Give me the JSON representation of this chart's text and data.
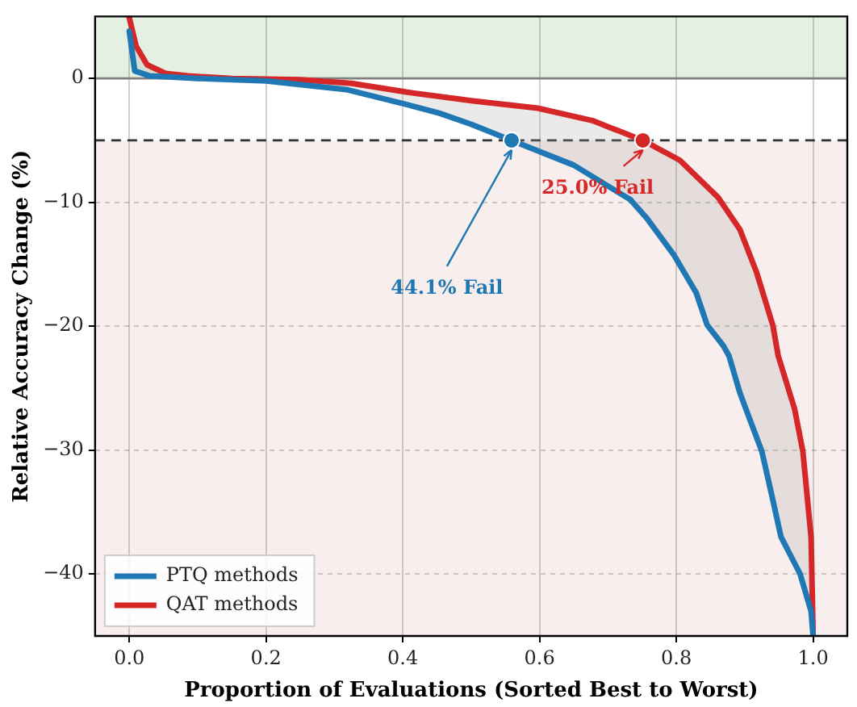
{
  "chart_data": {
    "type": "line",
    "xlabel": "Proportion of Evaluations (Sorted Best to Worst)",
    "ylabel": "Relative Accuracy Change (%)",
    "xlim": [
      -0.05,
      1.05
    ],
    "ylim": [
      -45,
      5
    ],
    "xticks": [
      {
        "value": 0,
        "label": "0.0"
      },
      {
        "value": 0.2,
        "label": "0.2"
      },
      {
        "value": 0.4,
        "label": "0.4"
      },
      {
        "value": 0.6,
        "label": "0.6"
      },
      {
        "value": 0.8,
        "label": "0.8"
      },
      {
        "value": 1,
        "label": "1.0"
      }
    ],
    "yticks": [
      {
        "value": 0,
        "label": "0"
      },
      {
        "value": -10,
        "label": "−10"
      },
      {
        "value": -20,
        "label": "−20"
      },
      {
        "value": -30,
        "label": "−30"
      },
      {
        "value": -40,
        "label": "−40"
      }
    ],
    "grid": true,
    "legend": "bottom left",
    "marker": "none",
    "series": [
      {
        "name": "PTQ methods",
        "color": "#1f77b4",
        "x": [
          0,
          0.008,
          0.03,
          0.1,
          0.2,
          0.317,
          0.405,
          0.453,
          0.5,
          0.559,
          0.65,
          0.733,
          0.757,
          0.797,
          0.829,
          0.845,
          0.869,
          0.877,
          0.893,
          0.925,
          0.941,
          0.953,
          0.981,
          0.997,
          1.0
        ],
        "values": [
          3.8,
          0.6,
          0.2,
          0,
          -0.2,
          -0.9,
          -2.1,
          -2.8,
          -3.7,
          -5,
          -7,
          -9.8,
          -11.3,
          -14.3,
          -17.3,
          -19.9,
          -21.6,
          -22.4,
          -25.4,
          -30.1,
          -34,
          -37,
          -40,
          -43,
          -45
        ]
      },
      {
        "name": "QAT methods",
        "color": "#d62728",
        "x": [
          0,
          0.01,
          0.026,
          0.053,
          0.086,
          0.15,
          0.25,
          0.325,
          0.405,
          0.5,
          0.597,
          0.677,
          0.751,
          0.805,
          0.861,
          0.893,
          0.917,
          0.941,
          0.949,
          0.973,
          0.985,
          0.997,
          1.0
        ],
        "values": [
          4.9,
          2.6,
          1.1,
          0.4,
          0.2,
          0,
          -0.1,
          -0.4,
          -1.1,
          -1.8,
          -2.4,
          -3.4,
          -5,
          -6.6,
          -9.6,
          -12.2,
          -15.6,
          -19.9,
          -22.4,
          -26.7,
          -30.1,
          -37,
          -45
        ]
      },
      {
        "type": "scatter",
        "marker": "circle",
        "color": "#1f77b4",
        "x": [
          0.559
        ],
        "values": [
          -5
        ]
      },
      {
        "type": "scatter",
        "marker": "circle",
        "color": "#d62728",
        "x": [
          0.751
        ],
        "values": [
          -5
        ]
      }
    ],
    "bands": [
      {
        "axis": "y",
        "from": 0,
        "to": 5,
        "color": "#e4f0e2"
      },
      {
        "axis": "y",
        "from": -45,
        "to": -5,
        "color": "#f9eeee"
      }
    ],
    "ref_lines": [
      {
        "axis": "y",
        "value": 0,
        "color": "#808080",
        "line_style": "solid"
      },
      {
        "axis": "y",
        "value": -5,
        "color": "#333333",
        "line_style": "dashed"
      }
    ],
    "annotations": [
      {
        "text": "44.1% Fail",
        "x": 0.559,
        "y": -5
      },
      {
        "text": "25.0% Fail",
        "x": 0.751,
        "y": -5
      }
    ]
  }
}
